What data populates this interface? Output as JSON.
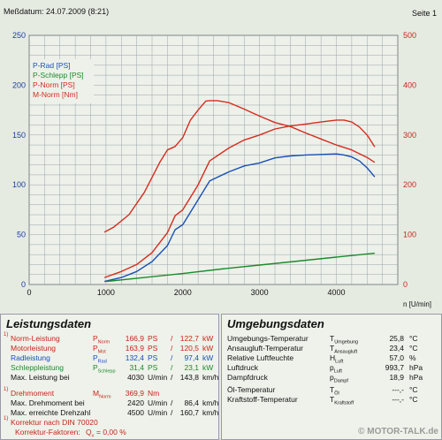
{
  "header": {
    "date_label": "Meßdatum: 24.07.2009 (8:21)",
    "page_label": "Seite 1"
  },
  "chart_data": {
    "type": "line",
    "x_unit_label": "n [U/min]",
    "xlim": [
      0,
      4800
    ],
    "x_ticks": [
      "0",
      "1000",
      "2000",
      "3000",
      "4000"
    ],
    "ylim_left": [
      0,
      250
    ],
    "y_ticks_left": [
      "0",
      "50",
      "100",
      "150",
      "200",
      "250"
    ],
    "ylim_right": [
      0,
      500
    ],
    "y_ticks_right": [
      "0",
      "100",
      "200",
      "300",
      "400",
      "500"
    ],
    "grid": true,
    "legend_position": "top-left",
    "series": [
      {
        "name": "P-Rad [PS]",
        "color": "#1a4fb8",
        "axis": "left",
        "x": [
          980,
          1200,
          1400,
          1600,
          1800,
          1900,
          2000,
          2200,
          2350,
          2600,
          2800,
          3000,
          3200,
          3400,
          3600,
          3800,
          4000,
          4100,
          4200,
          4300,
          4400,
          4500
        ],
        "y": [
          3,
          7,
          13,
          23,
          39,
          55,
          60,
          85,
          104,
          113,
          119,
          122,
          127,
          129,
          130,
          130.5,
          131,
          130,
          128,
          124,
          117,
          108
        ]
      },
      {
        "name": "P-Schlepp [PS]",
        "color": "#1c8a2c",
        "axis": "left",
        "x": [
          1000,
          1500,
          2000,
          2500,
          3000,
          3500,
          4000,
          4500
        ],
        "y": [
          3,
          7,
          11,
          15.5,
          19.5,
          23.5,
          27.5,
          31.4
        ]
      },
      {
        "name": "P-Norm [PS]",
        "color": "#d52c1e",
        "axis": "left",
        "x": [
          980,
          1200,
          1400,
          1600,
          1800,
          1900,
          2000,
          2200,
          2350,
          2600,
          2800,
          3000,
          3200,
          3400,
          3600,
          3800,
          4000,
          4100,
          4200,
          4300,
          4400,
          4500
        ],
        "y": [
          7,
          13,
          20,
          32,
          52,
          69,
          75,
          100,
          124,
          137,
          145,
          150,
          156,
          159,
          161,
          163,
          165,
          165,
          163,
          158,
          150,
          138
        ]
      },
      {
        "name": "M-Norm [Nm]",
        "color": "#d52c1e",
        "axis": "right",
        "x": [
          980,
          1100,
          1300,
          1500,
          1700,
          1800,
          1900,
          2000,
          2100,
          2200,
          2300,
          2350,
          2450,
          2600,
          2800,
          3000,
          3200,
          3400,
          3600,
          3800,
          4000,
          4200,
          4400,
          4500
        ],
        "y": [
          105,
          115,
          140,
          185,
          245,
          270,
          277,
          295,
          330,
          350,
          368,
          369,
          369,
          365,
          352,
          338,
          325,
          317,
          304,
          292,
          280,
          270,
          255,
          245
        ]
      }
    ]
  },
  "leistung": {
    "title": "Leistungsdaten",
    "rows": [
      {
        "label": "Norm-Leistung",
        "sup": "1)",
        "sym": "P",
        "sub": "Norm",
        "v1": "166,9",
        "u1": "PS",
        "sep": "/",
        "v2": "122,7",
        "u2": "kW",
        "color": "#c8261a"
      },
      {
        "label": "Motorleistung",
        "sup": "",
        "sym": "P",
        "sub": "Mot",
        "v1": "163,9",
        "u1": "PS",
        "sep": "/",
        "v2": "120,5",
        "u2": "kW",
        "color": "#c8261a"
      },
      {
        "label": "Radleistung",
        "sup": "",
        "sym": "P",
        "sub": "Rad",
        "v1": "132,4",
        "u1": "PS",
        "sep": "/",
        "v2": "97,4",
        "u2": "kW",
        "color": "#1a4fb8"
      },
      {
        "label": "Schleppleistung",
        "sup": "",
        "sym": "P",
        "sub": "Schlepp",
        "v1": "31,4",
        "u1": "PS",
        "sep": "/",
        "v2": "23,1",
        "u2": "kW",
        "color": "#1c8a2c"
      },
      {
        "label": "Max. Leistung bei",
        "sup": "",
        "sym": "",
        "sub": "",
        "v1": "4030",
        "u1": "U/min",
        "sep": "/",
        "v2": "143,8",
        "u2": "km/h",
        "color": "#111111"
      },
      {
        "label": "Drehmoment",
        "sup": "1)",
        "sym": "M",
        "sub": "Norm",
        "v1": "369,9",
        "u1": "Nm",
        "sep": "",
        "v2": "",
        "u2": "",
        "color": "#c8261a"
      },
      {
        "label": "Max. Drehmoment bei",
        "sup": "",
        "sym": "",
        "sub": "",
        "v1": "2420",
        "u1": "U/min",
        "sep": "/",
        "v2": "86,4",
        "u2": "km/h",
        "color": "#111111"
      },
      {
        "label": "Max. erreichte Drehzahl",
        "sup": "",
        "sym": "",
        "sub": "",
        "v1": "4500",
        "u1": "U/min",
        "sep": "/",
        "v2": "160,7",
        "u2": "km/h",
        "color": "#111111"
      }
    ],
    "footnote_sup": "1)",
    "footnote_label": "Korrektur nach DIN 70020",
    "factor_label": "Korrektur-Faktoren:",
    "factor_sym": "Q",
    "factor_sub": "v",
    "factor_value": "= 0,00 %"
  },
  "umgebung": {
    "title": "Umgebungsdaten",
    "rows": [
      {
        "label": "Umgebungs-Temperatur",
        "sym": "T",
        "sub": "Umgebung",
        "value": "25,8",
        "unit": "°C"
      },
      {
        "label": "Ansaugluft-Temperatur",
        "sym": "T",
        "sub": "Ansaugluft",
        "value": "23,4",
        "unit": "°C"
      },
      {
        "label": "Relative Luftfeuchte",
        "sym": "H",
        "sub": "Luft",
        "value": "57,0",
        "unit": "%"
      },
      {
        "label": "Luftdruck",
        "sym": "p",
        "sub": "Luft",
        "value": "993,7",
        "unit": "hPa"
      },
      {
        "label": "Dampfdruck",
        "sym": "p",
        "sub": "Dampf",
        "value": "18,9",
        "unit": "hPa"
      },
      {
        "label": "Öl-Temperatur",
        "sym": "T",
        "sub": "Öl",
        "value": "---,-",
        "unit": "°C"
      },
      {
        "label": "Kraftstoff-Temperatur",
        "sym": "T",
        "sub": "Kraftstoff",
        "value": "---,-",
        "unit": "°C"
      }
    ]
  },
  "watermark": "© MOTOR-TALK.de"
}
